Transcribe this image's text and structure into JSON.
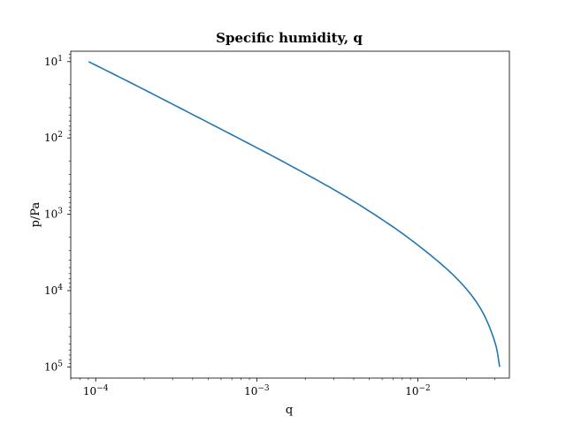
{
  "chart_data": {
    "type": "line",
    "title": "Specific humidity, q",
    "xlabel": "q",
    "ylabel": "p/Pa",
    "xscale": "log",
    "yscale": "log",
    "yaxis_inverted": true,
    "xlim": [
      7e-05,
      0.037
    ],
    "ylim": [
      140000,
      7.3
    ],
    "grid": false,
    "x_ticks": [
      {
        "value": 0.0001,
        "base": "10",
        "exp": "−4"
      },
      {
        "value": 0.001,
        "base": "10",
        "exp": "−3"
      },
      {
        "value": 0.01,
        "base": "10",
        "exp": "−2"
      }
    ],
    "y_ticks": [
      {
        "value": 10,
        "base": "10",
        "exp": "1"
      },
      {
        "value": 100,
        "base": "10",
        "exp": "2"
      },
      {
        "value": 1000,
        "base": "10",
        "exp": "3"
      },
      {
        "value": 10000,
        "base": "10",
        "exp": "4"
      },
      {
        "value": 100000,
        "base": "10",
        "exp": "5"
      }
    ],
    "series": [
      {
        "color": "#1f77b4",
        "points": [
          {
            "p": 10,
            "q": 9.04e-05
          },
          {
            "p": 20,
            "q": 0.000174
          },
          {
            "p": 50,
            "q": 0.000405
          },
          {
            "p": 100,
            "q": 0.000765
          },
          {
            "p": 200,
            "q": 0.00143
          },
          {
            "p": 500,
            "q": 0.00314
          },
          {
            "p": 1000,
            "q": 0.00535
          },
          {
            "p": 2000,
            "q": 0.00863
          },
          {
            "p": 5000,
            "q": 0.0148
          },
          {
            "p": 10000,
            "q": 0.0204
          },
          {
            "p": 20000,
            "q": 0.0255
          },
          {
            "p": 50000,
            "q": 0.0303
          },
          {
            "p": 100000,
            "q": 0.0322
          }
        ]
      }
    ]
  }
}
